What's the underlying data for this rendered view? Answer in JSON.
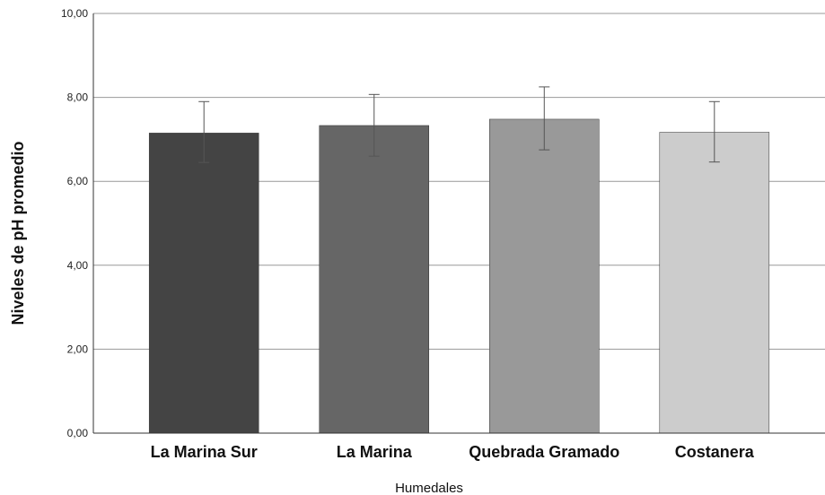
{
  "chart_data": {
    "type": "bar",
    "categories": [
      "La Marina Sur",
      "La Marina",
      "Quebrada Gramado",
      "Costanera"
    ],
    "values": [
      7.15,
      7.33,
      7.48,
      7.17
    ],
    "error_low": [
      6.45,
      6.6,
      6.75,
      6.46
    ],
    "error_high": [
      7.9,
      8.07,
      8.25,
      7.9
    ],
    "colors": [
      "#444444",
      "#666666",
      "#999999",
      "#cccccc"
    ],
    "xlabel": "Humedales",
    "ylabel": "Niveles de pH promedio",
    "ylim": [
      0,
      10
    ],
    "yticks": [
      0,
      2,
      4,
      6,
      8,
      10
    ],
    "ytick_labels": [
      "0,00",
      "2,00",
      "4,00",
      "6,00",
      "8,00",
      "10,00"
    ],
    "grid": true
  }
}
